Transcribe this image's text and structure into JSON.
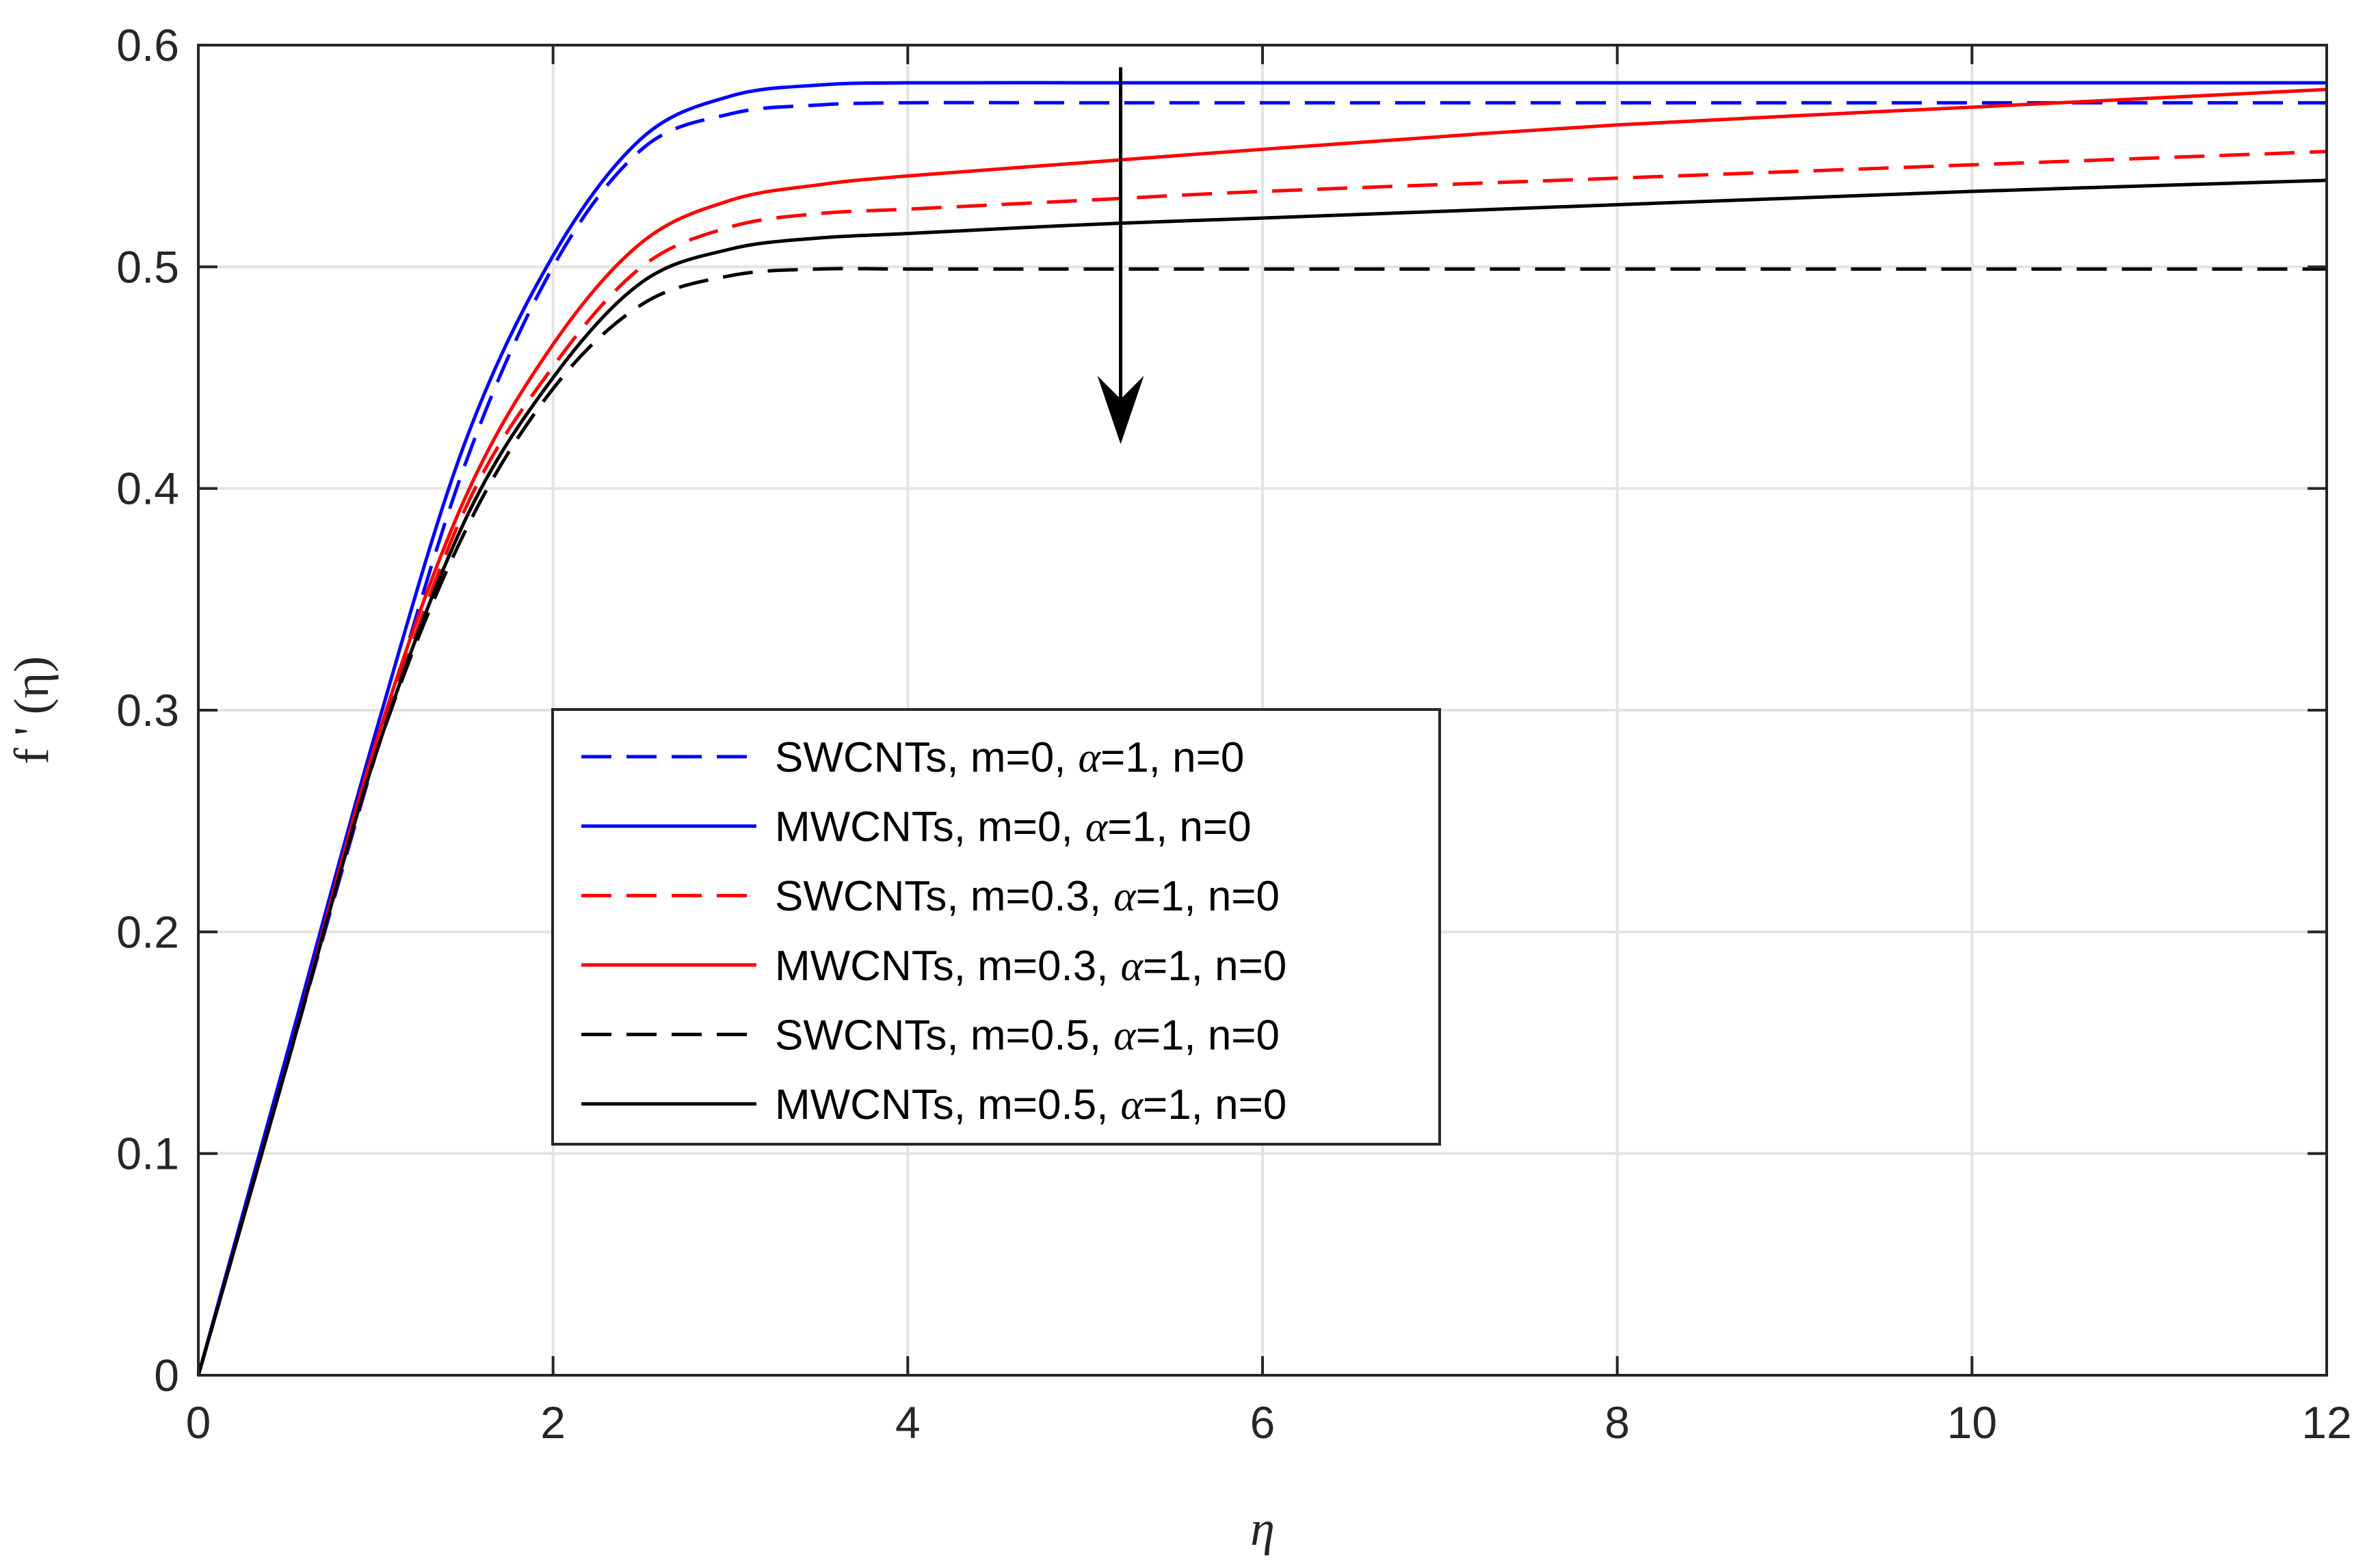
{
  "chart_data": {
    "type": "line",
    "xlabel": "η",
    "ylabel": "f ' (η)",
    "xlim": [
      0,
      12
    ],
    "ylim": [
      0,
      0.6
    ],
    "xticks": [
      0,
      2,
      4,
      6,
      8,
      10,
      12
    ],
    "yticks": [
      0,
      0.1,
      0.2,
      0.3,
      0.4,
      0.5,
      0.6
    ],
    "xtick_labels": [
      "0",
      "2",
      "4",
      "6",
      "8",
      "10",
      "12"
    ],
    "ytick_labels": [
      "0",
      "0.1",
      "0.2",
      "0.3",
      "0.4",
      "0.5",
      "0.6"
    ],
    "grid": true,
    "legend_position": "center-left",
    "annotation": {
      "type": "arrow",
      "direction": "down",
      "x": 5.2,
      "y_start": 0.59,
      "y_end": 0.42
    },
    "series": [
      {
        "name": "SWCNTs, m=0, α=1, n=0",
        "label_prefix": "SWCNTs, m=0,",
        "alpha_text": "α",
        "label_suffix": "=1, n=0",
        "color": "#0000ff",
        "dash": "dashed",
        "x": [
          0,
          0.5,
          1,
          1.5,
          2,
          2.5,
          3,
          3.5,
          4,
          5,
          6,
          8,
          10,
          12
        ],
        "y": [
          0,
          0.14,
          0.28,
          0.41,
          0.5,
          0.553,
          0.569,
          0.573,
          0.574,
          0.574,
          0.574,
          0.574,
          0.574,
          0.574
        ]
      },
      {
        "name": "MWCNTs, m=0, α=1, n=0",
        "label_prefix": "MWCNTs, m=0,",
        "alpha_text": "α",
        "label_suffix": "=1, n=0",
        "color": "#0000ff",
        "dash": "solid",
        "x": [
          0,
          0.5,
          1,
          1.5,
          2,
          2.5,
          3,
          3.5,
          4,
          5,
          6,
          8,
          10,
          12
        ],
        "y": [
          0,
          0.145,
          0.29,
          0.42,
          0.505,
          0.558,
          0.577,
          0.582,
          0.583,
          0.583,
          0.583,
          0.583,
          0.583,
          0.583
        ]
      },
      {
        "name": "SWCNTs, m=0.3, α=1, n=0",
        "label_prefix": "SWCNTs, m=0.3,",
        "alpha_text": "α",
        "label_suffix": "=1, n=0",
        "color": "#ff0000",
        "dash": "dashed",
        "x": [
          0,
          0.5,
          1,
          1.5,
          2,
          2.5,
          3,
          3.5,
          4,
          5,
          6,
          8,
          10,
          12
        ],
        "y": [
          0,
          0.14,
          0.28,
          0.39,
          0.455,
          0.5,
          0.518,
          0.524,
          0.526,
          0.53,
          0.534,
          0.54,
          0.546,
          0.552
        ]
      },
      {
        "name": "MWCNTs, m=0.3, α=1, n=0",
        "label_prefix": "MWCNTs, m=0.3,",
        "alpha_text": "α",
        "label_suffix": "=1, n=0",
        "color": "#ff0000",
        "dash": "solid",
        "x": [
          0,
          0.5,
          1,
          1.5,
          2,
          2.5,
          3,
          3.5,
          4,
          5,
          6,
          8,
          10,
          12
        ],
        "y": [
          0,
          0.14,
          0.285,
          0.395,
          0.465,
          0.511,
          0.53,
          0.537,
          0.541,
          0.547,
          0.553,
          0.564,
          0.572,
          0.58
        ]
      },
      {
        "name": "SWCNTs, m=0.5, α=1, n=0",
        "label_prefix": "SWCNTs, m=0.5,",
        "alpha_text": "α",
        "label_suffix": "=1, n=0",
        "color": "#000000",
        "dash": "dashed",
        "x": [
          0,
          0.5,
          1,
          1.5,
          2,
          2.5,
          3,
          3.5,
          4,
          5,
          6,
          8,
          10,
          12
        ],
        "y": [
          0,
          0.14,
          0.28,
          0.38,
          0.445,
          0.483,
          0.496,
          0.499,
          0.499,
          0.499,
          0.499,
          0.499,
          0.499,
          0.499
        ]
      },
      {
        "name": "MWCNTs, m=0.5, α=1, n=0",
        "label_prefix": "MWCNTs, m=0.5,",
        "alpha_text": "α",
        "label_suffix": "=1, n=0",
        "color": "#000000",
        "dash": "solid",
        "x": [
          0,
          0.5,
          1,
          1.5,
          2,
          2.5,
          3,
          3.5,
          4,
          5,
          6,
          8,
          10,
          12
        ],
        "y": [
          0,
          0.14,
          0.28,
          0.385,
          0.45,
          0.493,
          0.508,
          0.513,
          0.515,
          0.519,
          0.522,
          0.528,
          0.534,
          0.539
        ]
      }
    ]
  }
}
